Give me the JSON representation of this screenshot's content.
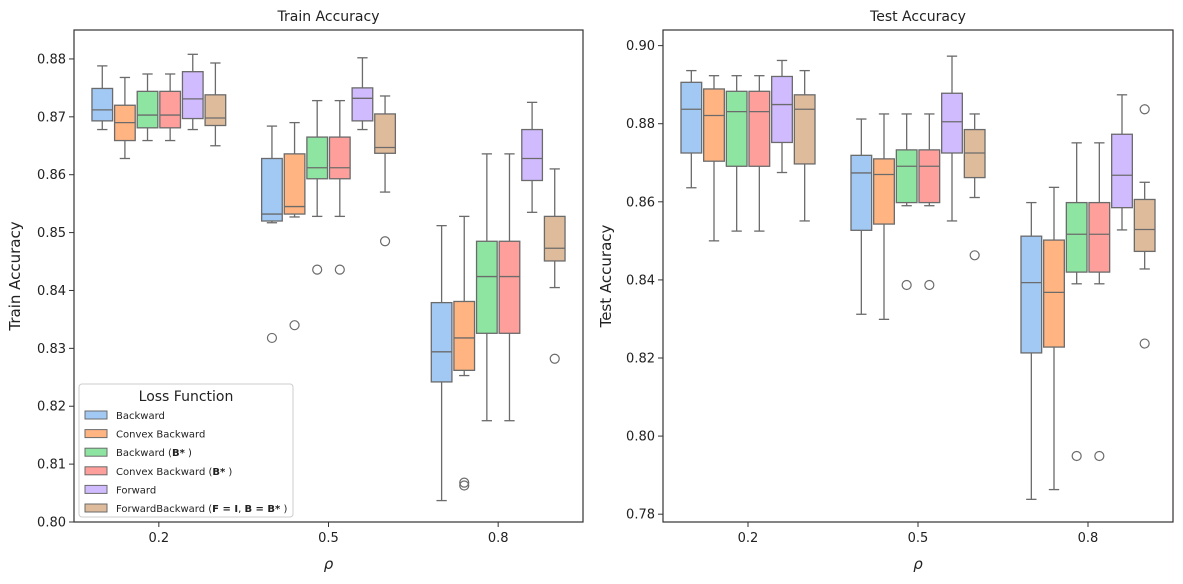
{
  "chart_data": [
    {
      "type": "box",
      "title": "Train Accuracy",
      "xlabel": "ρ",
      "ylabel": "Train Accuracy",
      "categories": [
        "0.2",
        "0.5",
        "0.8"
      ],
      "ylim": [
        0.8,
        0.885
      ],
      "yticks": [
        0.8,
        0.81,
        0.82,
        0.83,
        0.84,
        0.85,
        0.86,
        0.87,
        0.88
      ],
      "ytick_labels": [
        "0.80",
        "0.81",
        "0.82",
        "0.83",
        "0.84",
        "0.85",
        "0.86",
        "0.87",
        "0.88"
      ],
      "legend": {
        "title": "Loss Function",
        "placement": "lower-left",
        "entries": [
          "Backward",
          "Convex Backward",
          "Backward (B*)",
          "Convex Backward (B*)",
          "Forward",
          "ForwardBackward (F = I, B = B*)"
        ]
      },
      "series": [
        {
          "name": "Backward",
          "color": "#a1c9f4",
          "boxes": [
            {
              "min": 0.8678,
              "q1": 0.8693,
              "median": 0.8712,
              "q3": 0.8749,
              "max": 0.8788,
              "outliers": []
            },
            {
              "min": 0.8517,
              "q1": 0.852,
              "median": 0.8532,
              "q3": 0.8628,
              "max": 0.8684,
              "outliers": [
                0.8318
              ]
            },
            {
              "min": 0.8037,
              "q1": 0.8242,
              "median": 0.8294,
              "q3": 0.8379,
              "max": 0.8512,
              "outliers": []
            }
          ]
        },
        {
          "name": "Convex Backward",
          "color": "#ffb482",
          "boxes": [
            {
              "min": 0.8628,
              "q1": 0.8659,
              "median": 0.869,
              "q3": 0.872,
              "max": 0.8768,
              "outliers": []
            },
            {
              "min": 0.8527,
              "q1": 0.8532,
              "median": 0.8545,
              "q3": 0.8636,
              "max": 0.869,
              "outliers": [
                0.834
              ]
            },
            {
              "min": 0.8253,
              "q1": 0.8262,
              "median": 0.8318,
              "q3": 0.8381,
              "max": 0.8528,
              "outliers": [
                0.8068,
                0.8063
              ]
            }
          ]
        },
        {
          "name": "Backward (B*)",
          "color": "#8de5a1",
          "boxes": [
            {
              "min": 0.8659,
              "q1": 0.8681,
              "median": 0.8703,
              "q3": 0.8744,
              "max": 0.8774,
              "outliers": []
            },
            {
              "min": 0.8528,
              "q1": 0.8593,
              "median": 0.8612,
              "q3": 0.8665,
              "max": 0.8728,
              "outliers": [
                0.8436
              ]
            },
            {
              "min": 0.8175,
              "q1": 0.8326,
              "median": 0.8424,
              "q3": 0.8485,
              "max": 0.8636,
              "outliers": []
            }
          ]
        },
        {
          "name": "Convex Backward (B*)",
          "color": "#ff9f9b",
          "boxes": [
            {
              "min": 0.8659,
              "q1": 0.8681,
              "median": 0.8703,
              "q3": 0.8744,
              "max": 0.8774,
              "outliers": []
            },
            {
              "min": 0.8528,
              "q1": 0.8593,
              "median": 0.8612,
              "q3": 0.8665,
              "max": 0.8728,
              "outliers": [
                0.8436
              ]
            },
            {
              "min": 0.8175,
              "q1": 0.8326,
              "median": 0.8424,
              "q3": 0.8485,
              "max": 0.8636,
              "outliers": []
            }
          ]
        },
        {
          "name": "Forward",
          "color": "#d0bbff",
          "boxes": [
            {
              "min": 0.8678,
              "q1": 0.8697,
              "median": 0.8731,
              "q3": 0.8778,
              "max": 0.8808,
              "outliers": []
            },
            {
              "min": 0.8678,
              "q1": 0.8693,
              "median": 0.8732,
              "q3": 0.875,
              "max": 0.8802,
              "outliers": []
            },
            {
              "min": 0.8535,
              "q1": 0.859,
              "median": 0.8628,
              "q3": 0.8678,
              "max": 0.8725,
              "outliers": []
            }
          ]
        },
        {
          "name": "ForwardBackward (F = I, B = B*)",
          "color": "#debb9b",
          "boxes": [
            {
              "min": 0.865,
              "q1": 0.8685,
              "median": 0.8698,
              "q3": 0.8738,
              "max": 0.8793,
              "outliers": []
            },
            {
              "min": 0.857,
              "q1": 0.8637,
              "median": 0.8647,
              "q3": 0.8705,
              "max": 0.8736,
              "outliers": [
                0.8485
              ]
            },
            {
              "min": 0.8405,
              "q1": 0.8451,
              "median": 0.8473,
              "q3": 0.8528,
              "max": 0.861,
              "outliers": [
                0.8282
              ]
            }
          ]
        }
      ]
    },
    {
      "type": "box",
      "title": "Test Accuracy",
      "xlabel": "ρ",
      "ylabel": "Test Accuracy",
      "categories": [
        "0.2",
        "0.5",
        "0.8"
      ],
      "ylim": [
        0.778,
        0.904
      ],
      "yticks": [
        0.78,
        0.8,
        0.82,
        0.84,
        0.86,
        0.88,
        0.9
      ],
      "ytick_labels": [
        "0.78",
        "0.80",
        "0.82",
        "0.84",
        "0.86",
        "0.88",
        "0.90"
      ],
      "series": [
        {
          "name": "Backward",
          "color": "#a1c9f4",
          "boxes": [
            {
              "min": 0.8636,
              "q1": 0.8725,
              "median": 0.8837,
              "q3": 0.8906,
              "max": 0.8936,
              "outliers": []
            },
            {
              "min": 0.8312,
              "q1": 0.8527,
              "median": 0.8674,
              "q3": 0.8719,
              "max": 0.8812,
              "outliers": []
            },
            {
              "min": 0.7838,
              "q1": 0.8213,
              "median": 0.8393,
              "q3": 0.8512,
              "max": 0.8598,
              "outliers": []
            }
          ]
        },
        {
          "name": "Convex Backward",
          "color": "#ffb482",
          "boxes": [
            {
              "min": 0.85,
              "q1": 0.8704,
              "median": 0.8821,
              "q3": 0.8889,
              "max": 0.8923,
              "outliers": []
            },
            {
              "min": 0.8299,
              "q1": 0.8543,
              "median": 0.867,
              "q3": 0.871,
              "max": 0.8825,
              "outliers": []
            },
            {
              "min": 0.7863,
              "q1": 0.8228,
              "median": 0.8368,
              "q3": 0.8502,
              "max": 0.8637,
              "outliers": []
            }
          ]
        },
        {
          "name": "Backward (B*)",
          "color": "#8de5a1",
          "boxes": [
            {
              "min": 0.8525,
              "q1": 0.8691,
              "median": 0.8831,
              "q3": 0.8883,
              "max": 0.8923,
              "outliers": []
            },
            {
              "min": 0.859,
              "q1": 0.8598,
              "median": 0.8691,
              "q3": 0.8733,
              "max": 0.8825,
              "outliers": [
                0.8387
              ]
            },
            {
              "min": 0.839,
              "q1": 0.842,
              "median": 0.8517,
              "q3": 0.8598,
              "max": 0.8751,
              "outliers": [
                0.7949
              ]
            }
          ]
        },
        {
          "name": "Convex Backward (B*)",
          "color": "#ff9f9b",
          "boxes": [
            {
              "min": 0.8525,
              "q1": 0.8691,
              "median": 0.8831,
              "q3": 0.8883,
              "max": 0.8923,
              "outliers": []
            },
            {
              "min": 0.859,
              "q1": 0.8598,
              "median": 0.8691,
              "q3": 0.8733,
              "max": 0.8825,
              "outliers": [
                0.8387
              ]
            },
            {
              "min": 0.839,
              "q1": 0.842,
              "median": 0.8517,
              "q3": 0.8598,
              "max": 0.8751,
              "outliers": [
                0.7949
              ]
            }
          ]
        },
        {
          "name": "Forward",
          "color": "#d0bbff",
          "boxes": [
            {
              "min": 0.8675,
              "q1": 0.8752,
              "median": 0.8849,
              "q3": 0.8921,
              "max": 0.8962,
              "outliers": []
            },
            {
              "min": 0.8551,
              "q1": 0.8725,
              "median": 0.8805,
              "q3": 0.8878,
              "max": 0.8973,
              "outliers": []
            },
            {
              "min": 0.8528,
              "q1": 0.8585,
              "median": 0.8668,
              "q3": 0.8773,
              "max": 0.8874,
              "outliers": []
            }
          ]
        },
        {
          "name": "ForwardBackward (F = I, B = B*)",
          "color": "#debb9b",
          "boxes": [
            {
              "min": 0.8551,
              "q1": 0.8697,
              "median": 0.8837,
              "q3": 0.8874,
              "max": 0.8936,
              "outliers": []
            },
            {
              "min": 0.8611,
              "q1": 0.8662,
              "median": 0.8725,
              "q3": 0.8785,
              "max": 0.8825,
              "outliers": [
                0.8463
              ]
            },
            {
              "min": 0.8428,
              "q1": 0.8473,
              "median": 0.8529,
              "q3": 0.8606,
              "max": 0.865,
              "outliers": [
                0.8837,
                0.8237
              ]
            }
          ]
        }
      ]
    }
  ]
}
